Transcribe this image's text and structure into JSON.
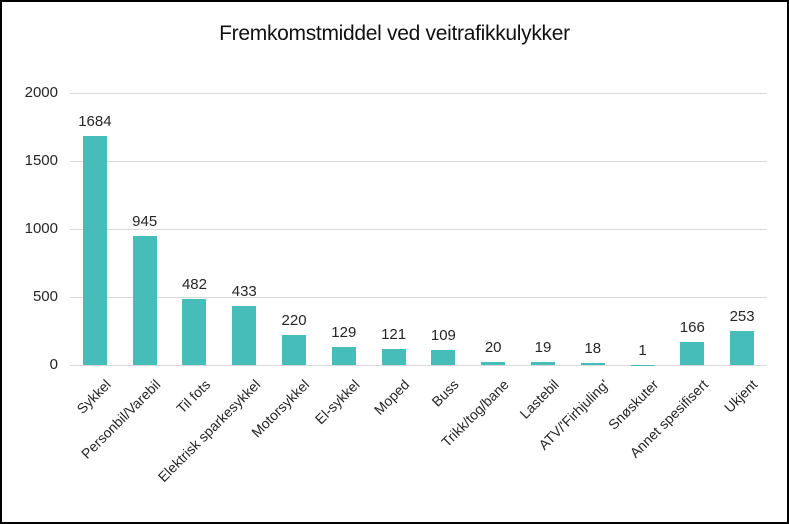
{
  "title": "Fremkomstmiddel ved veitrafikkulykker",
  "chart_data": {
    "type": "bar",
    "title": "Fremkomstmiddel ved veitrafikkulykker",
    "categories": [
      "Sykkel",
      "Personbil/Varebil",
      "Til fots",
      "Elektrisk sparkesykkel",
      "Motorsykkel",
      "El-sykkel",
      "Moped",
      "Buss",
      "Trikk/tog/bane",
      "Lastebil",
      "ATV/'Firhjuling'",
      "Snøskuter",
      "Annet spesifisert",
      "Ukjent"
    ],
    "values": [
      1684,
      945,
      482,
      433,
      220,
      129,
      121,
      109,
      20,
      19,
      18,
      1,
      166,
      253
    ],
    "data_labels": [
      "1684",
      "945",
      "482",
      "433",
      "220",
      "129",
      "121",
      "109",
      "20",
      "19",
      "18",
      "1",
      "166",
      "253"
    ],
    "xlabel": "",
    "ylabel": "",
    "y_ticks": [
      0,
      500,
      1000,
      1500,
      2000
    ],
    "ylim": [
      0,
      2000
    ],
    "grid": true,
    "legend": false,
    "bar_color": "#46BDB8",
    "gridline_color": "#D9D9D9",
    "text_color": "#262626"
  }
}
